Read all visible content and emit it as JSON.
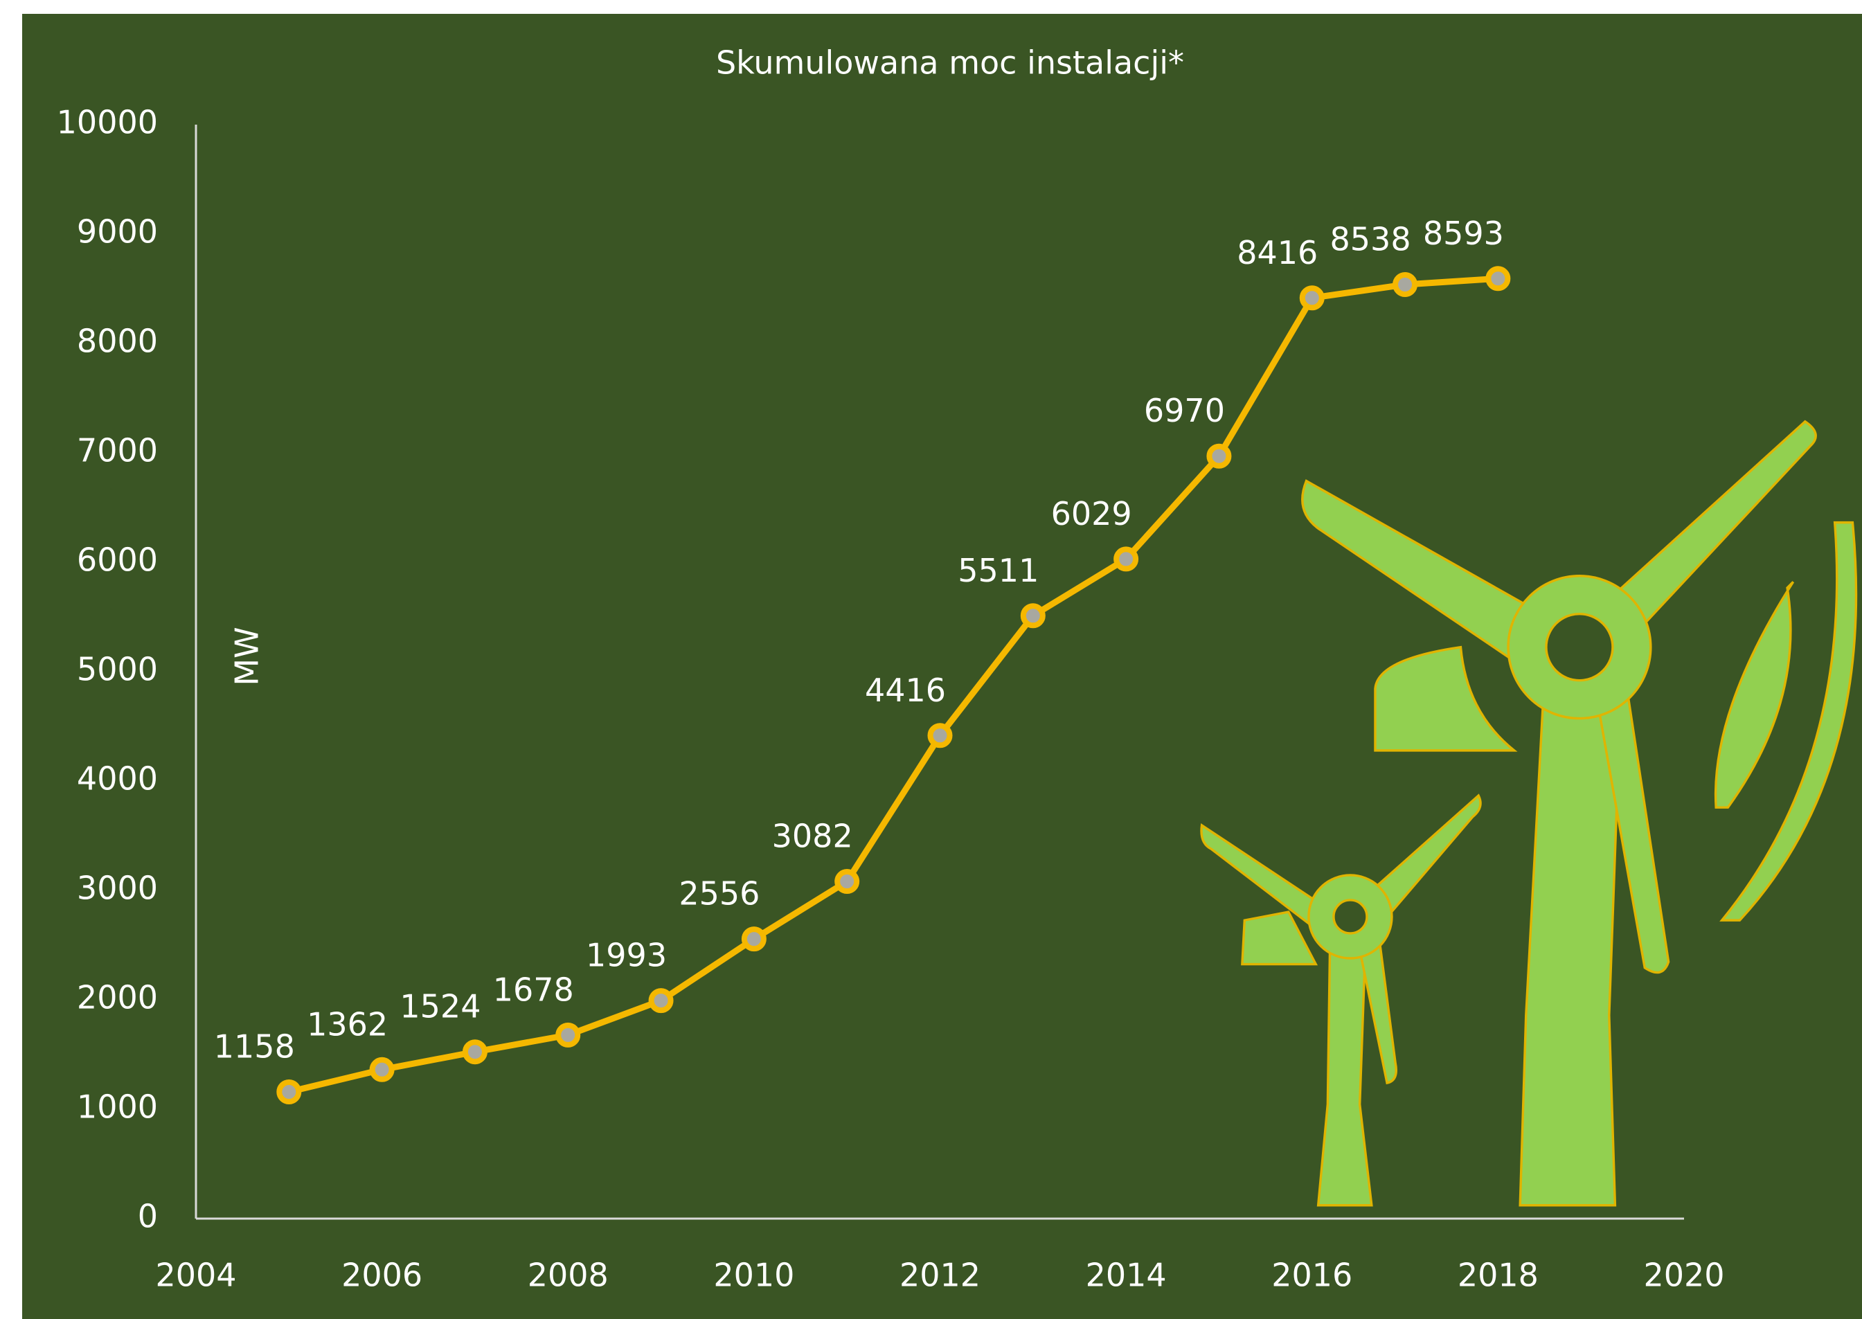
{
  "chart_data": {
    "type": "line",
    "title": "Skumulowana moc  instalacji*",
    "y_label": "MW",
    "x": [
      2005,
      2006,
      2007,
      2008,
      2009,
      2010,
      2011,
      2012,
      2013,
      2014,
      2015,
      2016,
      2017,
      2018
    ],
    "series": [
      {
        "name": "Skumulowana moc",
        "color": "#f5b800",
        "values": [
          1158,
          1362,
          1524,
          1678,
          1993,
          2556,
          3082,
          4416,
          5511,
          6029,
          6970,
          8416,
          8538,
          8593
        ]
      }
    ],
    "xlim": [
      2004,
      2020
    ],
    "xticks": [
      2004,
      2006,
      2008,
      2010,
      2012,
      2014,
      2016,
      2018,
      2020
    ],
    "ylim": [
      0,
      10000
    ],
    "yticks": [
      0,
      1000,
      2000,
      3000,
      4000,
      5000,
      6000,
      7000,
      8000,
      9000,
      10000
    ],
    "grid": false
  }
}
